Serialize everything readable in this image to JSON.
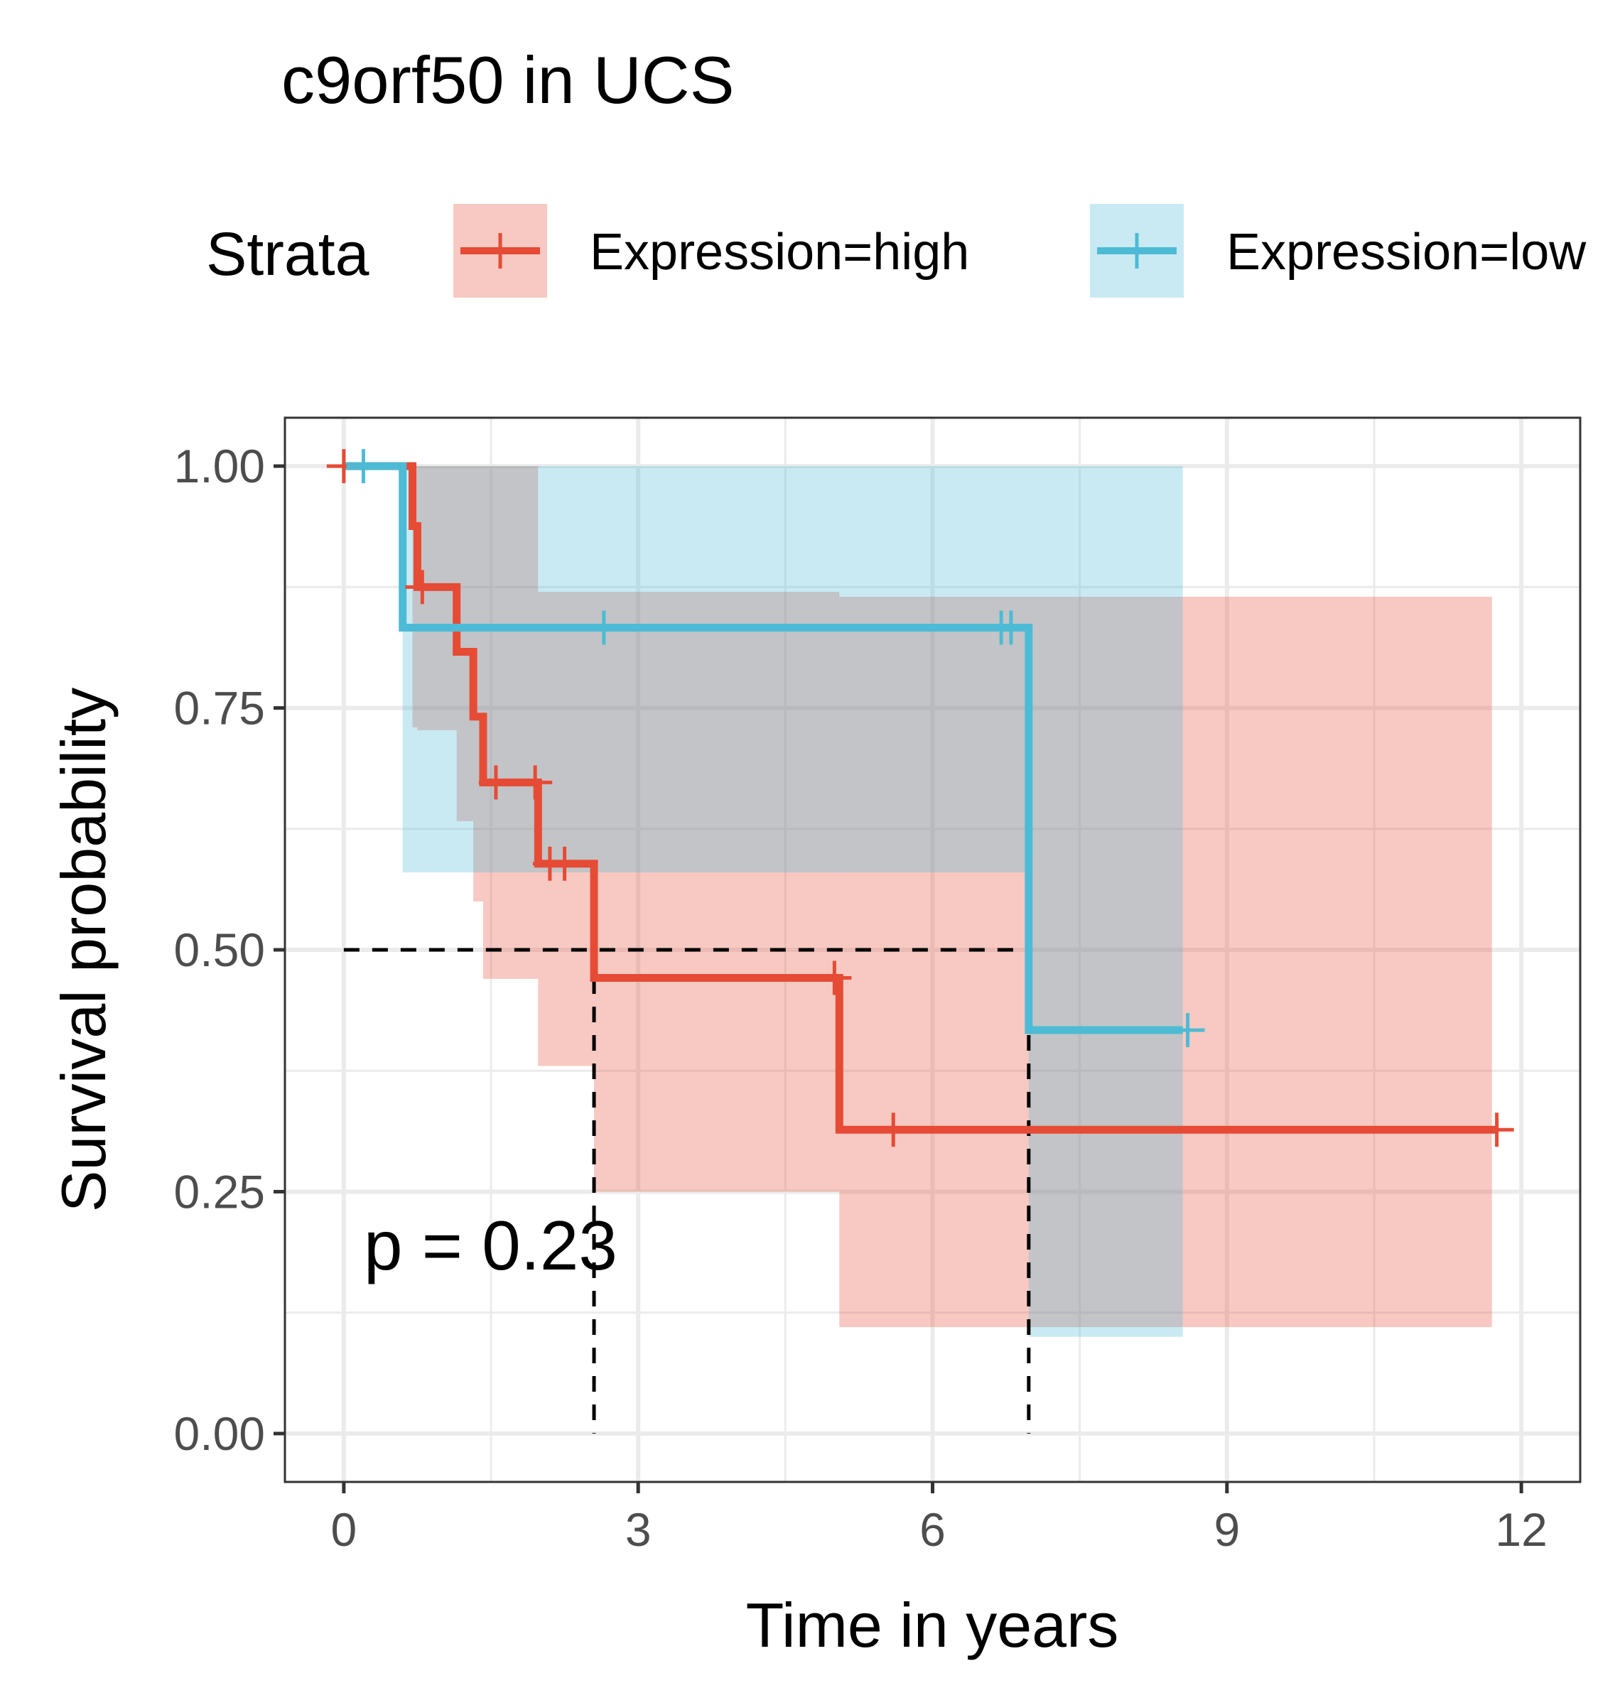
{
  "chart_data": {
    "type": "line",
    "subtype": "kaplan-meier",
    "title": "c9orf50 in UCS",
    "xlabel": "Time in years",
    "ylabel": "Survival probability",
    "xlim": [
      -0.6,
      12.6
    ],
    "ylim": [
      -0.05,
      1.05
    ],
    "x_ticks": [
      0,
      3,
      6,
      9,
      12
    ],
    "x_tick_labels": [
      "0",
      "3",
      "6",
      "9",
      "12"
    ],
    "y_ticks": [
      0,
      0.25,
      0.5,
      0.75,
      1
    ],
    "y_tick_labels": [
      "0.00",
      "0.25",
      "0.50",
      "0.75",
      "1.00"
    ],
    "grid": true,
    "legend": {
      "title": "Strata",
      "position": "top"
    },
    "annotation": "p = 0.23",
    "median_line": {
      "y": 0.5,
      "x_values": [
        2.55,
        6.98
      ]
    },
    "series": [
      {
        "name": "Expression=high",
        "color": "#E64B35",
        "steps": [
          [
            0,
            1.0
          ],
          [
            0.7,
            0.938
          ],
          [
            0.75,
            0.875
          ],
          [
            1.15,
            0.808
          ],
          [
            1.32,
            0.741
          ],
          [
            1.42,
            0.673
          ],
          [
            1.98,
            0.589
          ],
          [
            2.55,
            0.471
          ],
          [
            5.05,
            0.314
          ],
          [
            11.75,
            0.314
          ]
        ],
        "ci_steps": [
          [
            0,
            1.0,
            1.0
          ],
          [
            0.7,
            1.0,
            0.73
          ],
          [
            0.75,
            1.0,
            0.727
          ],
          [
            1.15,
            1.0,
            0.633
          ],
          [
            1.32,
            1.0,
            0.55
          ],
          [
            1.42,
            1.0,
            0.47
          ],
          [
            1.98,
            0.87,
            0.38
          ],
          [
            2.55,
            0.87,
            0.25
          ],
          [
            5.05,
            0.865,
            0.11
          ],
          [
            11.7,
            0.865,
            0.11
          ]
        ],
        "censor_x": [
          0,
          0.8,
          1.55,
          1.95,
          2.1,
          2.25,
          5.0,
          5.6,
          11.75
        ]
      },
      {
        "name": "Expression=low",
        "color": "#4DBBD5",
        "steps": [
          [
            0,
            1.0
          ],
          [
            0.6,
            0.833
          ],
          [
            6.98,
            0.417
          ],
          [
            8.55,
            0.417
          ]
        ],
        "ci_steps": [
          [
            0,
            1.0,
            1.0
          ],
          [
            0.6,
            1.0,
            0.58
          ],
          [
            6.98,
            1.0,
            0.1
          ],
          [
            8.55,
            1.0,
            0.1
          ]
        ],
        "censor_x": [
          0.2,
          2.65,
          6.7,
          6.8,
          8.6
        ]
      }
    ]
  }
}
